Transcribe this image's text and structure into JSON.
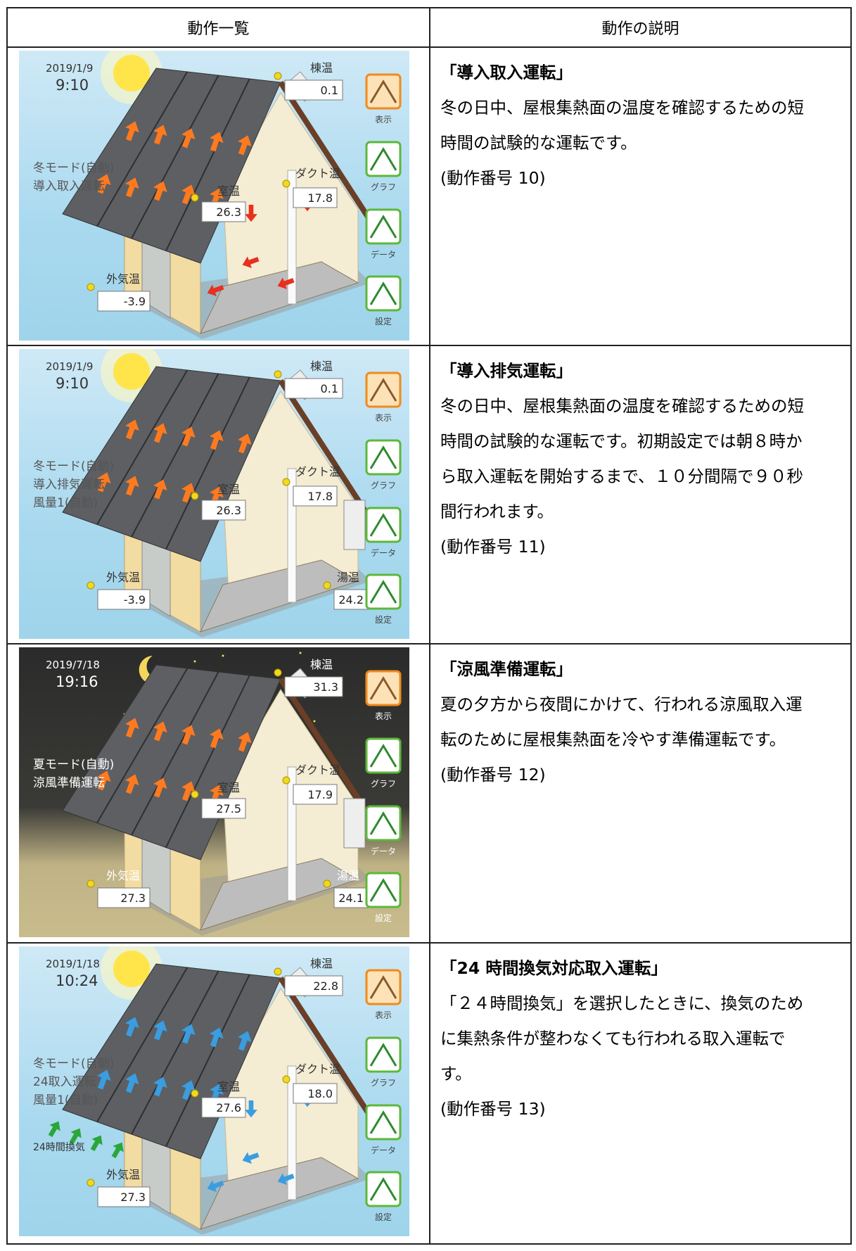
{
  "header": {
    "columns": [
      "動作一覧",
      "動作の説明"
    ]
  },
  "rows": [
    {
      "panel": {
        "date": "2019/1/9",
        "time": "9:10",
        "status": [
          "冬モード(自動)",
          "導入取入運転"
        ],
        "sensors": [
          {
            "label": "棟温",
            "value": "0.1"
          },
          {
            "label": "室温",
            "value": "26.3"
          },
          {
            "label": "ダクト温",
            "value": "17.8"
          },
          {
            "label": "外気温",
            "value": "-3.9"
          }
        ],
        "buttons": [
          "表示",
          "グラフ",
          "データ",
          "設定"
        ]
      },
      "description": {
        "title": "「導入取入運転」",
        "body": "冬の日中、屋根集熱面の温度を確認するための短時間の試験的な運転です。",
        "number": "(動作番号 10)"
      }
    },
    {
      "panel": {
        "date": "2019/1/9",
        "time": "9:10",
        "status": [
          "冬モード(自動)",
          "導入排気運転",
          "風量1(自動)"
        ],
        "sensors": [
          {
            "label": "棟温",
            "value": "0.1"
          },
          {
            "label": "室温",
            "value": "26.3"
          },
          {
            "label": "ダクト温",
            "value": "17.8"
          },
          {
            "label": "外気温",
            "value": "-3.9"
          },
          {
            "label": "湯温",
            "value": "24.2"
          }
        ],
        "buttons": [
          "表示",
          "グラフ",
          "データ",
          "設定"
        ]
      },
      "description": {
        "title": "「導入排気運転」",
        "body": "冬の日中、屋根集熱面の温度を確認するための短時間の試験的な運転です。初期設定では朝８時から取入運転を開始するまで、１０分間隔で９０秒間行われます。",
        "number": "(動作番号 11)"
      }
    },
    {
      "panel": {
        "date": "2019/7/18",
        "time": "19:16",
        "status": [
          "夏モード(自動)",
          "涼風準備運転"
        ],
        "sensors": [
          {
            "label": "棟温",
            "value": "31.3"
          },
          {
            "label": "室温",
            "value": "27.5"
          },
          {
            "label": "ダクト温",
            "value": "17.9"
          },
          {
            "label": "外気温",
            "value": "27.3"
          },
          {
            "label": "湯温",
            "value": "24.1"
          }
        ],
        "buttons": [
          "表示",
          "グラフ",
          "データ",
          "設定"
        ]
      },
      "description": {
        "title": "「涼風準備運転」",
        "body": "夏の夕方から夜間にかけて、行われる涼風取入運転のために屋根集熱面を冷やす準備運転です。",
        "number": "(動作番号 12)"
      }
    },
    {
      "panel": {
        "date": "2019/1/18",
        "time": "10:24",
        "status": [
          "冬モード(自動)",
          "24取入運転",
          "風量1(自動)"
        ],
        "sensors": [
          {
            "label": "棟温",
            "value": "22.8"
          },
          {
            "label": "室温",
            "value": "27.6"
          },
          {
            "label": "ダクト温",
            "value": "18.0"
          },
          {
            "label": "外気温",
            "value": "27.3"
          }
        ],
        "note": "24時間換気",
        "buttons": [
          "表示",
          "グラフ",
          "データ",
          "設定"
        ]
      },
      "description": {
        "title": "「24 時間換気対応取入運転」",
        "body": "「２４時間換気」を選択したときに、換気のために集熱条件が整わなくても行われる取入運転です。",
        "number": "(動作番号 13)"
      }
    }
  ]
}
